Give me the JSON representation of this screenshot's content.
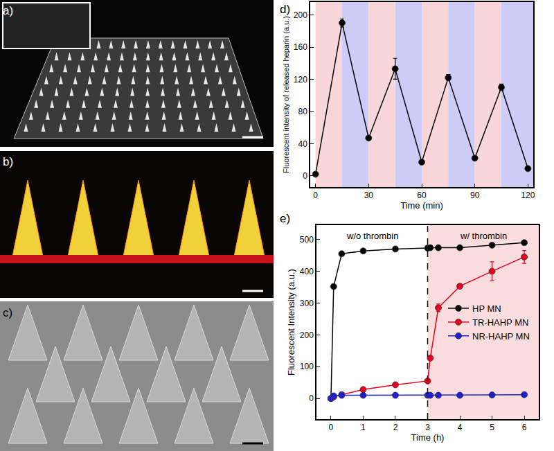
{
  "panels": [
    {
      "label": "a)"
    },
    {
      "label": "b)"
    },
    {
      "label": "c)"
    }
  ],
  "chart_data": [
    {
      "label": "d)",
      "type": "scatter",
      "x_label": "Time (min)",
      "y_label": "Fluorescent intensity of released heparin (a.u.)",
      "x": [
        0,
        15,
        30,
        45,
        60,
        75,
        90,
        105,
        120
      ],
      "values": [
        2,
        190,
        47,
        133,
        17,
        122,
        22,
        110,
        9
      ],
      "errors": [
        1,
        5,
        2,
        13,
        2,
        4,
        2,
        4,
        1
      ],
      "color": "#000000",
      "marker": "circle",
      "line_style": "solid",
      "regions": [
        {
          "start": 0,
          "end": 15,
          "color": "#f9d6da"
        },
        {
          "start": 15,
          "end": 30,
          "color": "#ccccf6"
        },
        {
          "start": 30,
          "end": 45,
          "color": "#f9d6da"
        },
        {
          "start": 45,
          "end": 60,
          "color": "#ccccf6"
        },
        {
          "start": 60,
          "end": 75,
          "color": "#f9d6da"
        },
        {
          "start": 75,
          "end": 90,
          "color": "#ccccf6"
        },
        {
          "start": 90,
          "end": 105,
          "color": "#f9d6da"
        },
        {
          "start": 105,
          "end": 123,
          "color": "#ccccf6"
        }
      ],
      "xlim": [
        -3,
        123
      ],
      "xticks": [
        0,
        30,
        60,
        90,
        120
      ],
      "ylim": [
        -14,
        216
      ],
      "yticks": [
        0,
        40,
        80,
        120,
        160,
        200
      ]
    },
    {
      "label": "e)",
      "type": "line",
      "x_label": "Time (h)",
      "y_label": "Fluorescent Intensity (a.u.)",
      "x": [
        0,
        0.083,
        0.333,
        1,
        2,
        3,
        3.083,
        3.333,
        4,
        5,
        6
      ],
      "series": [
        {
          "name": "HP MN",
          "color": "#000000",
          "marker": "circle",
          "line_style": "solid",
          "values": [
            0,
            352,
            455,
            464,
            470,
            473,
            474,
            474,
            474,
            482,
            490
          ],
          "errors": [
            0,
            4,
            4,
            4,
            4,
            4,
            4,
            4,
            4,
            5,
            5
          ]
        },
        {
          "name": "TR-HAHP MN",
          "color": "#e8001c",
          "marker": "circle",
          "line_style": "solid",
          "values": [
            0,
            5,
            12,
            28,
            43,
            55,
            127,
            285,
            353,
            400,
            445
          ],
          "errors": [
            0,
            2,
            2,
            3,
            3,
            3,
            5,
            12,
            5,
            30,
            20
          ]
        },
        {
          "name": "NR-HAHP MN",
          "color": "#1f1fcf",
          "marker": "circle",
          "line_style": "solid",
          "values": [
            0,
            8,
            10,
            10,
            10,
            10,
            10,
            10,
            10,
            11,
            12
          ],
          "errors": [
            0,
            1,
            1,
            1,
            1,
            1,
            1,
            1,
            1,
            1,
            1
          ]
        }
      ],
      "regions": [
        {
          "start": -0.45,
          "end": 3,
          "color": "#ffffff",
          "label": "w/o thrombin"
        },
        {
          "start": 3,
          "end": 6.45,
          "color": "#fbdde0",
          "label": "w/ thrombin"
        }
      ],
      "vline": {
        "x": 3,
        "line_style": "dashed"
      },
      "legend": "right",
      "xlim": [
        -0.45,
        6.45
      ],
      "xticks": [
        0,
        1,
        2,
        3,
        4,
        5,
        6
      ],
      "ylim": [
        -65,
        545
      ],
      "yticks": [
        0,
        100,
        200,
        300,
        400,
        500
      ]
    }
  ]
}
